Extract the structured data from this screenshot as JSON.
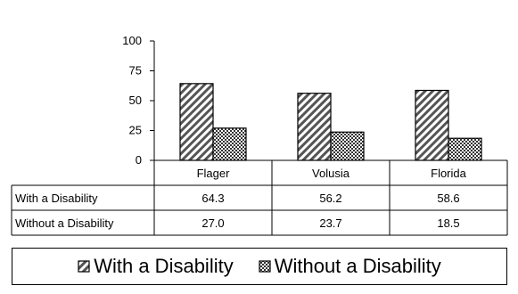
{
  "chart_data": {
    "type": "bar",
    "categories": [
      "Flager",
      "Volusia",
      "Florida"
    ],
    "series": [
      {
        "name": "With a Disability",
        "values": [
          64.3,
          56.2,
          58.6
        ],
        "labels": [
          "64.3",
          "56.2",
          "58.6"
        ]
      },
      {
        "name": "Without a Disability",
        "values": [
          27.0,
          23.7,
          18.5
        ],
        "labels": [
          "27.0",
          "23.7",
          "18.5"
        ]
      }
    ],
    "y_ticks": [
      "0",
      "25",
      "50",
      "75",
      "100"
    ],
    "ylim": [
      0,
      100
    ],
    "grid": false,
    "legend_position": "bottom",
    "data_table": true
  }
}
